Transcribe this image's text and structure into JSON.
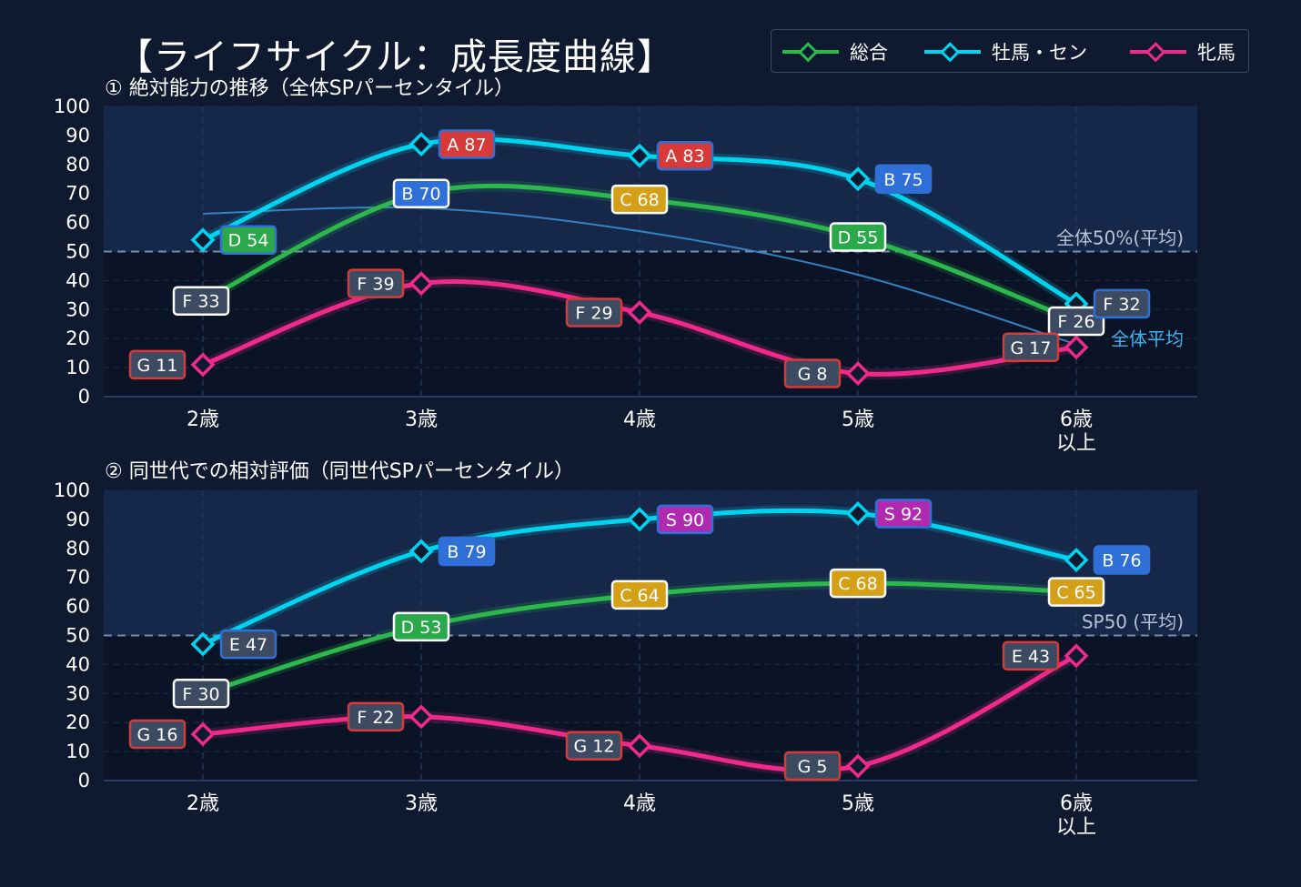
{
  "title": "【ライフサイクル：成長度曲線】",
  "legend": [
    {
      "label": "総合",
      "color": "#2db84d"
    },
    {
      "label": "牡馬・セン",
      "color": "#00d4f0"
    },
    {
      "label": "牝馬",
      "color": "#f02a8c"
    }
  ],
  "colors": {
    "background": "#0f1a30",
    "plot_bg": "#0b1426",
    "upper_band": "#15284a",
    "grade_S": "#b02ab0",
    "grade_A": "#d83a3a",
    "grade_B": "#2e6fd8",
    "grade_C": "#d4a017",
    "grade_D": "#2aa84a",
    "grade_E": "#3c4a62",
    "grade_F": "#3c4a62",
    "grade_G": "#3c4a62",
    "reference_text": "#b8c2d4",
    "overall_avg_line": "#3a8cd0"
  },
  "chart_data": [
    {
      "type": "line",
      "title": "① 絶対能力の推移（全体SPパーセンタイル）",
      "categories": [
        "2歳",
        "3歳",
        "4歳",
        "5歳",
        "6歳\n以上"
      ],
      "ylim": [
        0,
        100
      ],
      "yticks": [
        0,
        10,
        20,
        30,
        40,
        50,
        60,
        70,
        80,
        90,
        100
      ],
      "reference_line": {
        "value": 50,
        "label": "全体50%(平均)"
      },
      "avg_curve": {
        "label": "全体平均",
        "values": [
          63,
          65,
          57,
          42,
          18
        ]
      },
      "series": [
        {
          "name": "総合",
          "values": [
            33,
            70,
            68,
            55,
            26
          ],
          "labels": [
            "F 33",
            "B 70",
            "C 68",
            "D 55",
            "F 26"
          ],
          "grades": [
            "F",
            "B",
            "C",
            "D",
            "F"
          ],
          "label_pos": [
            "left",
            "center",
            "center",
            "center",
            "center"
          ]
        },
        {
          "name": "牡馬・セン",
          "values": [
            54,
            87,
            83,
            75,
            32
          ],
          "labels": [
            "D 54",
            "A 87",
            "A 83",
            "B 75",
            "F 32"
          ],
          "grades": [
            "D",
            "A",
            "A",
            "B",
            "F"
          ],
          "label_pos": [
            "right",
            "right",
            "right",
            "right",
            "right"
          ]
        },
        {
          "name": "牝馬",
          "values": [
            11,
            39,
            29,
            8,
            17
          ],
          "labels": [
            "G 11",
            "F 39",
            "F 29",
            "G 8",
            "G 17"
          ],
          "grades": [
            "G",
            "F",
            "F",
            "G",
            "G"
          ],
          "label_pos": [
            "left",
            "left",
            "left",
            "left",
            "left"
          ]
        }
      ]
    },
    {
      "type": "line",
      "title": "② 同世代での相対評価（同世代SPパーセンタイル）",
      "categories": [
        "2歳",
        "3歳",
        "4歳",
        "5歳",
        "6歳\n以上"
      ],
      "ylim": [
        0,
        100
      ],
      "yticks": [
        0,
        10,
        20,
        30,
        40,
        50,
        60,
        70,
        80,
        90,
        100
      ],
      "reference_line": {
        "value": 50,
        "label": "SP50 (平均)"
      },
      "series": [
        {
          "name": "総合",
          "values": [
            30,
            53,
            64,
            68,
            65
          ],
          "labels": [
            "F 30",
            "D 53",
            "C 64",
            "C 68",
            "C 65"
          ],
          "grades": [
            "F",
            "D",
            "C",
            "C",
            "C"
          ],
          "label_pos": [
            "center",
            "center",
            "center",
            "center",
            "center"
          ]
        },
        {
          "name": "牡馬・セン",
          "values": [
            47,
            79,
            90,
            92,
            76
          ],
          "labels": [
            "E 47",
            "B 79",
            "S 90",
            "S 92",
            "B 76"
          ],
          "grades": [
            "E",
            "B",
            "S",
            "S",
            "B"
          ],
          "label_pos": [
            "right",
            "right",
            "right",
            "right",
            "right"
          ]
        },
        {
          "name": "牝馬",
          "values": [
            16,
            22,
            12,
            5,
            43
          ],
          "labels": [
            "G 16",
            "F 22",
            "G 12",
            "G 5",
            "E 43"
          ],
          "grades": [
            "G",
            "F",
            "G",
            "G",
            "E"
          ],
          "label_pos": [
            "left",
            "left",
            "left",
            "left",
            "left"
          ]
        }
      ]
    }
  ]
}
